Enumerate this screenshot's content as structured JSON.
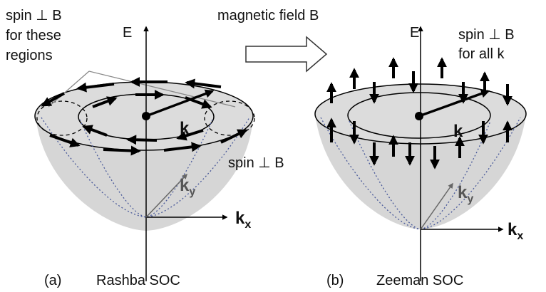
{
  "panel_a": {
    "note_top": [
      "spin ⊥ B",
      "for these",
      "regions"
    ],
    "axis_e": "E",
    "k_label": "k",
    "ky": {
      "base": "k",
      "sub": "y"
    },
    "kx": {
      "base": "k",
      "sub": "x"
    },
    "note_side": "spin ⊥ B",
    "label": "(a)",
    "title": "Rashba SOC"
  },
  "arrow_label": "magnetic field B",
  "panel_b": {
    "axis_e": "E",
    "note": [
      "spin ⊥ B",
      "for all k"
    ],
    "k_label": "k",
    "ky": {
      "base": "k",
      "sub": "y"
    },
    "kx": {
      "base": "k",
      "sub": "x"
    },
    "label": "(b)",
    "title": "Zeeman SOC"
  }
}
